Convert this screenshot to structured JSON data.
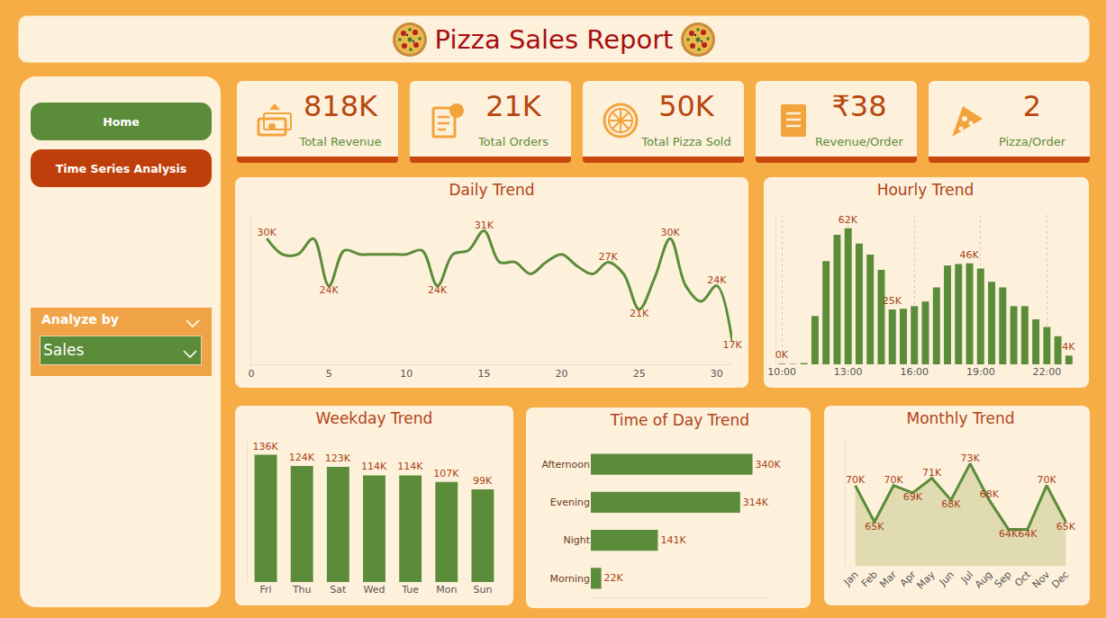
{
  "title": "Pizza Sales Report",
  "nav": [
    "Home",
    "Time Series Analysis"
  ],
  "slicer": {
    "label": "Analyze by",
    "selected": "Sales"
  },
  "kpis": [
    {
      "value": "818K",
      "label": "Total Revenue"
    },
    {
      "value": "21K",
      "label": "Total Orders"
    },
    {
      "value": "50K",
      "label": "Total Pizza Sold"
    },
    {
      "value": "₹38",
      "label": "Revenue/Order"
    },
    {
      "value": "2",
      "label": "Pizza/Order"
    }
  ],
  "chart_data": [
    {
      "type": "line",
      "title": "Daily Trend",
      "x": [
        1,
        2,
        3,
        4,
        5,
        6,
        7,
        8,
        9,
        10,
        11,
        12,
        13,
        14,
        15,
        16,
        17,
        18,
        19,
        20,
        21,
        22,
        23,
        24,
        25,
        26,
        27,
        28,
        29,
        30,
        31
      ],
      "values": [
        30000,
        28000,
        28000,
        30000,
        24000,
        28500,
        28000,
        28000,
        28000,
        28000,
        28500,
        24000,
        28000,
        28500,
        31000,
        27000,
        27000,
        25500,
        27000,
        28000,
        26500,
        25500,
        27000,
        25500,
        21000,
        25000,
        30000,
        24000,
        22000,
        24000,
        17000
      ],
      "value_labels": [
        "30K",
        null,
        null,
        null,
        "24K",
        null,
        null,
        null,
        null,
        null,
        null,
        "24K",
        null,
        null,
        "31K",
        null,
        null,
        null,
        null,
        null,
        null,
        null,
        "27K",
        null,
        "21K",
        null,
        "30K",
        null,
        null,
        "24K",
        "17K"
      ],
      "xlim": [
        0,
        31
      ],
      "xticks": [
        0,
        5,
        10,
        15,
        20,
        25,
        30
      ],
      "ylim": [
        14000,
        33000
      ],
      "yticks": [],
      "tick_labels": "x",
      "data_labels": true,
      "grid": false,
      "color": "#5B8C3A",
      "line_style": "smooth"
    },
    {
      "type": "bar",
      "title": "Hourly Trend",
      "categories": [
        "10:00",
        null,
        null,
        null,
        null,
        null,
        "13:00",
        null,
        null,
        null,
        null,
        null,
        "16:00",
        null,
        null,
        null,
        null,
        null,
        "19:00",
        null,
        null,
        null,
        null,
        null,
        "22:00",
        null,
        null
      ],
      "values": [
        300,
        200,
        600,
        22000,
        47000,
        59000,
        62000,
        55000,
        50000,
        43000,
        25000,
        25300,
        26500,
        28600,
        35000,
        45000,
        45700,
        46000,
        43600,
        37600,
        35000,
        26500,
        26500,
        20500,
        17000,
        12800,
        4000
      ],
      "value_labels": [
        "0K",
        null,
        null,
        null,
        null,
        null,
        "62K",
        null,
        null,
        null,
        "25K",
        null,
        null,
        null,
        null,
        null,
        null,
        "46K",
        null,
        null,
        null,
        null,
        null,
        null,
        null,
        null,
        "4K"
      ],
      "ylim": [
        0,
        68000
      ],
      "yticks": [],
      "tick_labels": "x",
      "data_labels": true,
      "grid": true,
      "color": "#5B8C3A"
    },
    {
      "type": "bar",
      "title": "Weekday Trend",
      "categories": [
        "Fri",
        "Thu",
        "Sat",
        "Wed",
        "Tue",
        "Mon",
        "Sun"
      ],
      "values": [
        136000,
        124000,
        123000,
        114000,
        114000,
        107000,
        99000
      ],
      "value_labels": [
        "136K",
        "124K",
        "123K",
        "114K",
        "114K",
        "107K",
        "99K"
      ],
      "ylim": [
        0,
        150000
      ],
      "yticks": [],
      "tick_labels": "x",
      "data_labels": true,
      "grid": false,
      "color": "#5B8C3A"
    },
    {
      "type": "bar",
      "title": "Time of Day Trend",
      "orientation": "horizontal",
      "categories": [
        "Afternoon",
        "Evening",
        "Night",
        "Morning"
      ],
      "values": [
        340000,
        314000,
        141000,
        22000
      ],
      "value_labels": [
        "340K",
        "314K",
        "141K",
        "22K"
      ],
      "xlim": [
        0,
        375000
      ],
      "xticks": [],
      "tick_labels": "y",
      "data_labels": true,
      "grid": false,
      "color": "#5B8C3A"
    },
    {
      "type": "area",
      "title": "Monthly Trend",
      "categories": [
        "Jan",
        "Feb",
        "Mar",
        "Apr",
        "May",
        "Jun",
        "Jul",
        "Aug",
        "Sep",
        "Oct",
        "Nov",
        "Dec"
      ],
      "values": [
        70000,
        65000,
        70000,
        69000,
        71000,
        68000,
        73000,
        68000,
        64000,
        64000,
        70000,
        65000
      ],
      "value_labels": [
        "70K",
        "65K",
        "70K",
        "69K",
        "71K",
        "68K",
        "73K",
        "68K",
        "64K",
        "64K",
        "70K",
        "65K"
      ],
      "ylim": [
        59000,
        76000
      ],
      "yticks": [],
      "tick_labels": "x",
      "data_labels": true,
      "grid": false,
      "color": "#5B8C3A",
      "line_style": "straight"
    }
  ]
}
